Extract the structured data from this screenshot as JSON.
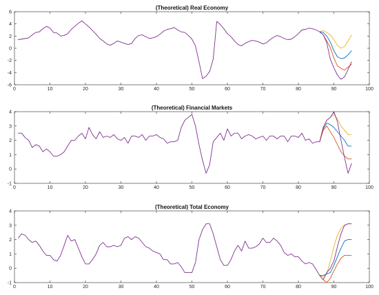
{
  "chart_data": [
    {
      "type": "line",
      "title": "(Theoretical) Real Economy",
      "xlim": [
        0,
        100
      ],
      "ylim": [
        -6,
        6
      ],
      "xticks": [
        0,
        10,
        20,
        30,
        40,
        50,
        60,
        70,
        80,
        90,
        100
      ],
      "yticks": [
        -6,
        -4,
        -2,
        0,
        2,
        4,
        6
      ],
      "series": [
        {
          "color": "#7E2F8E",
          "x": [
            1,
            2,
            3,
            4,
            5,
            6,
            7,
            8,
            9,
            10,
            11,
            12,
            13,
            14,
            15,
            16,
            17,
            18,
            19,
            20,
            21,
            22,
            23,
            24,
            25,
            26,
            27,
            28,
            29,
            30,
            31,
            32,
            33,
            34,
            35,
            36,
            37,
            38,
            39,
            40,
            41,
            42,
            43,
            44,
            45,
            46,
            47,
            48,
            49,
            50,
            51,
            52,
            53,
            54,
            55,
            56,
            57,
            58,
            59,
            60,
            61,
            62,
            63,
            64,
            65,
            66,
            67,
            68,
            69,
            70,
            71,
            72,
            73,
            74,
            75,
            76,
            77,
            78,
            79,
            80,
            81,
            82,
            83,
            84,
            85,
            86,
            87,
            88,
            89,
            90,
            91,
            92,
            93,
            94,
            95
          ],
          "y": [
            1.4,
            1.5,
            1.6,
            1.7,
            2.2,
            2.6,
            2.7,
            3.2,
            3.6,
            3.3,
            2.6,
            2.5,
            2.0,
            2.1,
            2.4,
            3.1,
            3.6,
            4.1,
            4.5,
            4.0,
            3.5,
            2.9,
            2.3,
            1.6,
            1.2,
            0.7,
            0.5,
            0.8,
            1.2,
            1.0,
            0.8,
            0.6,
            0.8,
            1.6,
            2.1,
            2.2,
            1.9,
            1.6,
            1.7,
            1.9,
            2.3,
            2.8,
            3.1,
            3.2,
            3.4,
            3.0,
            2.7,
            2.6,
            2.1,
            1.5,
            0.4,
            -2.2,
            -5.0,
            -4.6,
            -3.8,
            -1.8,
            4.4,
            3.9,
            3.2,
            2.4,
            1.9,
            1.2,
            0.6,
            0.4,
            0.8,
            1.1,
            1.3,
            1.2,
            1.0,
            0.7,
            0.9,
            1.4,
            1.8,
            2.1,
            1.9,
            1.6,
            1.4,
            1.5,
            1.9,
            2.4,
            3.0,
            3.1,
            3.3,
            3.2,
            3.0,
            2.7,
            2.2,
            0.9,
            -1.8,
            -3.2,
            -4.4,
            -5.1,
            -4.7,
            -3.5,
            -2.2
          ]
        },
        {
          "color": "#EDB120",
          "x": [
            86,
            87,
            88,
            89,
            90,
            91,
            92,
            93,
            94,
            95
          ],
          "y": [
            2.7,
            2.9,
            2.6,
            2.2,
            1.4,
            0.5,
            0.0,
            0.3,
            1.2,
            2.2
          ]
        },
        {
          "color": "#0072BD",
          "x": [
            86,
            87,
            88,
            89,
            90,
            91,
            92,
            93,
            94,
            95
          ],
          "y": [
            2.7,
            2.6,
            2.0,
            1.0,
            -0.4,
            -1.4,
            -1.7,
            -1.6,
            -1.1,
            -0.4
          ]
        },
        {
          "color": "#D95319",
          "x": [
            86,
            87,
            88,
            89,
            90,
            91,
            92,
            93,
            94,
            95
          ],
          "y": [
            2.7,
            2.2,
            1.2,
            0.1,
            -1.6,
            -2.9,
            -3.3,
            -3.6,
            -3.1,
            -2.6
          ]
        }
      ]
    },
    {
      "type": "line",
      "title": "(Theoretical) Financial Markets",
      "xlim": [
        0,
        100
      ],
      "ylim": [
        -1,
        4
      ],
      "xticks": [
        0,
        10,
        20,
        30,
        40,
        50,
        60,
        70,
        80,
        90,
        100
      ],
      "yticks": [
        -1,
        0,
        1,
        2,
        3,
        4
      ],
      "series": [
        {
          "color": "#7E2F8E",
          "x": [
            1,
            2,
            3,
            4,
            5,
            6,
            7,
            8,
            9,
            10,
            11,
            12,
            13,
            14,
            15,
            16,
            17,
            18,
            19,
            20,
            21,
            22,
            23,
            24,
            25,
            26,
            27,
            28,
            29,
            30,
            31,
            32,
            33,
            34,
            35,
            36,
            37,
            38,
            39,
            40,
            41,
            42,
            43,
            44,
            45,
            46,
            47,
            48,
            49,
            50,
            51,
            52,
            53,
            54,
            55,
            56,
            57,
            58,
            59,
            60,
            61,
            62,
            63,
            64,
            65,
            66,
            67,
            68,
            69,
            70,
            71,
            72,
            73,
            74,
            75,
            76,
            77,
            78,
            79,
            80,
            81,
            82,
            83,
            84,
            85,
            86,
            87,
            88,
            89,
            90,
            91,
            92,
            93,
            94,
            95
          ],
          "y": [
            2.5,
            2.5,
            2.2,
            2.0,
            1.5,
            1.7,
            1.6,
            1.2,
            1.4,
            1.2,
            0.9,
            0.9,
            1.0,
            1.2,
            1.6,
            2.0,
            2.0,
            2.3,
            2.5,
            2.1,
            2.9,
            2.4,
            2.1,
            2.6,
            2.2,
            2.3,
            2.2,
            2.4,
            2.1,
            2.0,
            2.2,
            1.8,
            2.3,
            2.3,
            2.2,
            2.4,
            2.0,
            2.3,
            2.3,
            2.4,
            2.2,
            2.1,
            1.8,
            1.9,
            1.9,
            2.0,
            2.9,
            3.4,
            3.6,
            3.8,
            3.0,
            1.7,
            0.6,
            -0.3,
            0.3,
            1.9,
            2.2,
            2.5,
            2.0,
            2.8,
            2.3,
            2.5,
            2.5,
            2.1,
            2.3,
            2.4,
            2.3,
            2.1,
            2.2,
            2.3,
            2.0,
            2.3,
            2.3,
            2.1,
            2.3,
            2.3,
            1.9,
            2.3,
            2.3,
            2.2,
            2.5,
            2.0,
            2.1,
            1.8,
            1.9,
            1.9,
            2.9,
            3.4,
            3.6,
            4.0,
            3.3,
            2.0,
            0.8,
            -0.3,
            0.4
          ]
        },
        {
          "color": "#EDB120",
          "x": [
            86,
            87,
            88,
            89,
            90,
            91,
            92,
            93,
            94,
            95
          ],
          "y": [
            1.9,
            2.9,
            3.4,
            3.6,
            3.8,
            3.5,
            3.0,
            2.7,
            2.4,
            2.4
          ]
        },
        {
          "color": "#0072BD",
          "x": [
            86,
            87,
            88,
            89,
            90,
            91,
            92,
            93,
            94,
            95
          ],
          "y": [
            1.9,
            2.8,
            3.2,
            3.1,
            2.9,
            2.6,
            2.3,
            2.0,
            1.6,
            1.6
          ]
        },
        {
          "color": "#D95319",
          "x": [
            86,
            87,
            88,
            89,
            90,
            91,
            92,
            93,
            94,
            95
          ],
          "y": [
            1.9,
            2.7,
            3.0,
            2.6,
            2.2,
            1.7,
            1.2,
            0.9,
            0.7,
            0.7
          ]
        }
      ]
    },
    {
      "type": "line",
      "title": "(Theoretical) Total Economy",
      "xlim": [
        0,
        100
      ],
      "ylim": [
        -1,
        4
      ],
      "xticks": [
        0,
        10,
        20,
        30,
        40,
        50,
        60,
        70,
        80,
        90,
        100
      ],
      "yticks": [
        -1,
        0,
        1,
        2,
        3,
        4
      ],
      "series": [
        {
          "color": "#7E2F8E",
          "x": [
            1,
            2,
            3,
            4,
            5,
            6,
            7,
            8,
            9,
            10,
            11,
            12,
            13,
            14,
            15,
            16,
            17,
            18,
            19,
            20,
            21,
            22,
            23,
            24,
            25,
            26,
            27,
            28,
            29,
            30,
            31,
            32,
            33,
            34,
            35,
            36,
            37,
            38,
            39,
            40,
            41,
            42,
            43,
            44,
            45,
            46,
            47,
            48,
            49,
            50,
            51,
            52,
            53,
            54,
            55,
            56,
            57,
            58,
            59,
            60,
            61,
            62,
            63,
            64,
            65,
            66,
            67,
            68,
            69,
            70,
            71,
            72,
            73,
            74,
            75,
            76,
            77,
            78,
            79,
            80,
            81,
            82,
            83,
            84,
            85,
            86,
            87,
            88,
            89,
            90,
            91,
            92,
            93,
            94,
            95
          ],
          "y": [
            2.1,
            2.4,
            2.3,
            2.0,
            1.8,
            1.9,
            1.6,
            1.2,
            0.9,
            0.9,
            0.6,
            0.5,
            0.9,
            1.6,
            2.3,
            1.9,
            2.0,
            1.4,
            0.8,
            0.3,
            0.3,
            0.6,
            1.0,
            1.6,
            1.8,
            1.5,
            1.5,
            1.6,
            1.5,
            1.6,
            2.1,
            2.2,
            2.0,
            2.2,
            2.1,
            1.8,
            1.5,
            1.4,
            1.2,
            1.1,
            1.0,
            0.6,
            0.6,
            0.3,
            0.3,
            0.4,
            0.1,
            -0.3,
            -0.3,
            -0.3,
            0.4,
            2.0,
            2.7,
            3.1,
            3.1,
            2.4,
            1.5,
            0.6,
            0.2,
            0.2,
            0.6,
            1.2,
            1.6,
            1.2,
            1.9,
            1.4,
            1.4,
            1.5,
            1.7,
            2.1,
            1.8,
            1.8,
            2.1,
            1.9,
            1.6,
            1.1,
            0.9,
            1.0,
            0.8,
            0.8,
            0.5,
            0.3,
            0.4,
            0.3,
            -0.1,
            -0.5,
            -0.8,
            -0.3,
            0.0,
            0.5,
            1.5,
            2.4,
            3.0,
            3.1,
            3.1
          ]
        },
        {
          "color": "#EDB120",
          "x": [
            86,
            87,
            88,
            89,
            90,
            91,
            92,
            93,
            94,
            95
          ],
          "y": [
            -0.5,
            -0.6,
            -0.4,
            0.5,
            1.5,
            2.3,
            2.8,
            3.0,
            3.1,
            3.1
          ]
        },
        {
          "color": "#0072BD",
          "x": [
            86,
            87,
            88,
            89,
            90,
            91,
            92,
            93,
            94,
            95
          ],
          "y": [
            -0.5,
            -0.5,
            -0.4,
            -0.3,
            0.2,
            0.8,
            1.4,
            1.9,
            2.0,
            2.0
          ]
        },
        {
          "color": "#D95319",
          "x": [
            86,
            87,
            88,
            89,
            90,
            91,
            92,
            93,
            94,
            95
          ],
          "y": [
            -0.5,
            -0.8,
            -1.0,
            -0.7,
            -0.2,
            0.3,
            0.7,
            0.9,
            0.9,
            0.9
          ]
        }
      ]
    }
  ]
}
